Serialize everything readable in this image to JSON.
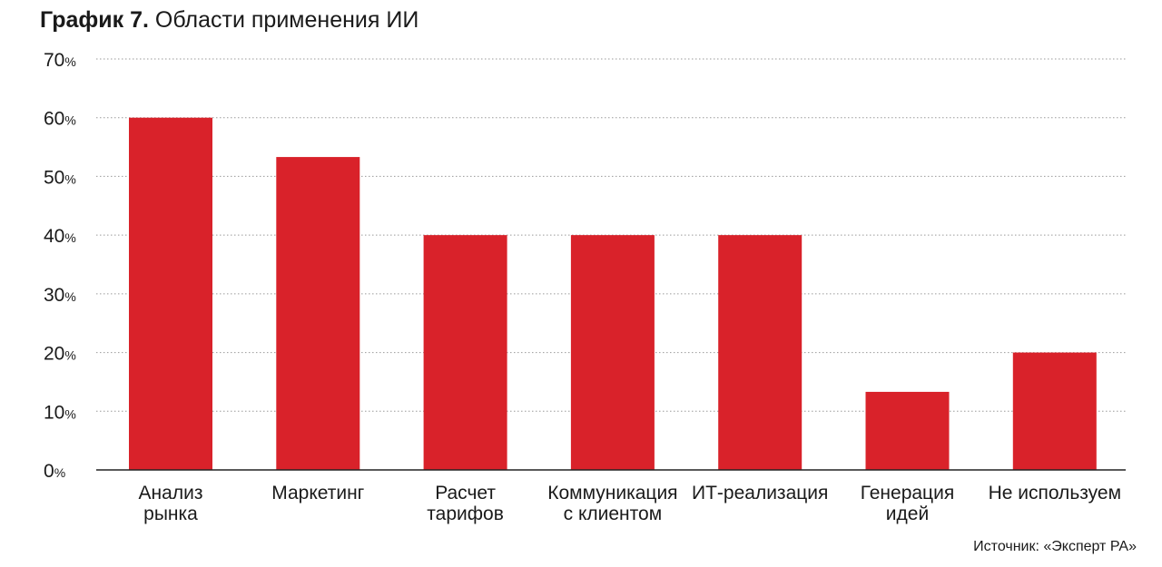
{
  "title_bold": "График 7.",
  "title_rest": " Области применения ИИ",
  "source": "Источник: «Эксперт РА»",
  "colors": {
    "bar": "#d9222a",
    "grid": "#9a9a9a",
    "axis": "#222222",
    "text": "#1a1a1a"
  },
  "chart_data": {
    "type": "bar",
    "title": "График 7. Области применения ИИ",
    "categories": [
      [
        "Анализ",
        "рынка"
      ],
      [
        "Маркетинг"
      ],
      [
        "Расчет",
        "тарифов"
      ],
      [
        "Коммуникация",
        "с клиентом"
      ],
      [
        "ИТ-реализация"
      ],
      [
        "Генерация",
        "идей"
      ],
      [
        "Не используем"
      ]
    ],
    "values": [
      60,
      53.3,
      40,
      40,
      40,
      13.3,
      20
    ],
    "ylim": [
      0,
      70
    ],
    "yticks": [
      0,
      10,
      20,
      30,
      40,
      50,
      60,
      70
    ],
    "ytick_suffix": "%",
    "grid": true,
    "legend": false
  }
}
